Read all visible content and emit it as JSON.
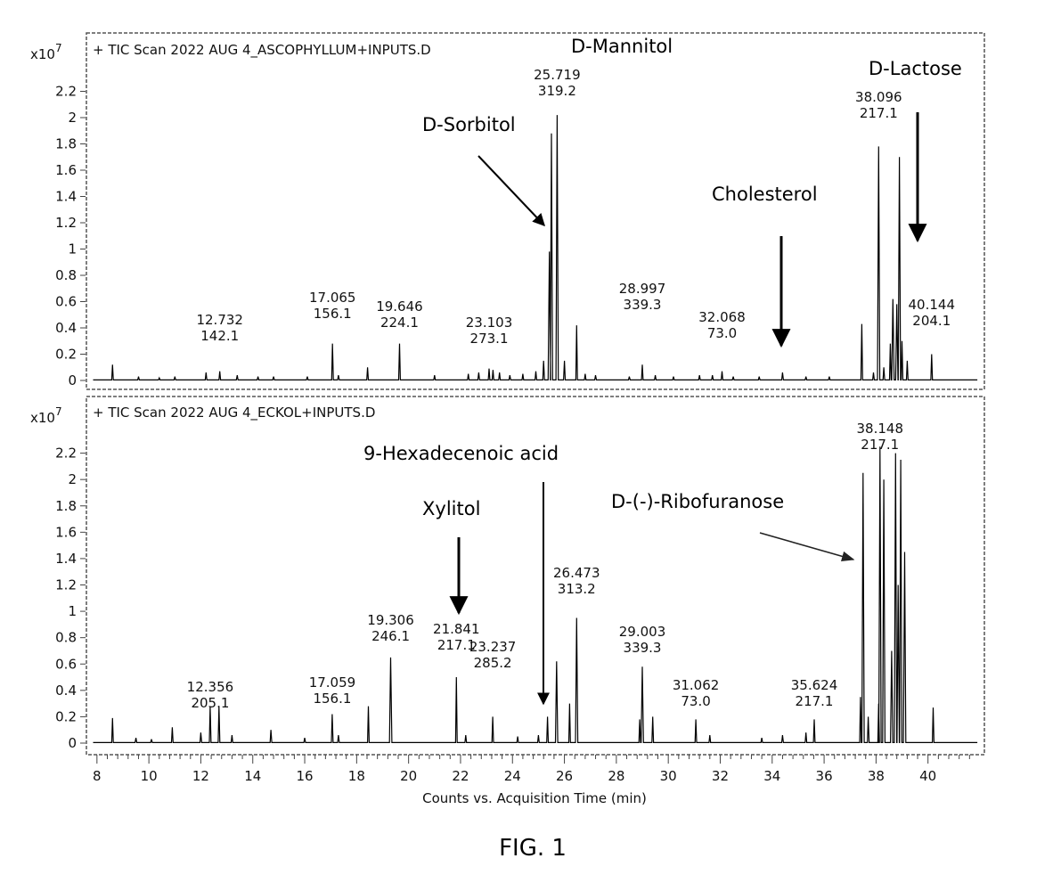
{
  "figure_caption": "FIG. 1",
  "chart_data": [
    {
      "type": "line",
      "header": "+ TIC Scan 2022 AUG 4_ASCOPHYLLUM+INPUTS.D",
      "y_scale_label": "x10",
      "y_scale_exponent": "7",
      "ylim": [
        0,
        2.4
      ],
      "yticks": [
        {
          "v": 0,
          "t": "0"
        },
        {
          "v": 0.2,
          "t": "0.2"
        },
        {
          "v": 0.4,
          "t": "0.4"
        },
        {
          "v": 0.6,
          "t": "0.6"
        },
        {
          "v": 0.8,
          "t": "0.8"
        },
        {
          "v": 1,
          "t": "1"
        },
        {
          "v": 1.2,
          "t": "1.2"
        },
        {
          "v": 1.4,
          "t": "1.4"
        },
        {
          "v": 1.6,
          "t": "1.6"
        },
        {
          "v": 1.8,
          "t": "1.8"
        },
        {
          "v": 2,
          "t": "2"
        },
        {
          "v": 2.2,
          "t": "2.2"
        }
      ],
      "xlim": [
        7.8,
        42.0
      ],
      "peaks": [
        [
          8.6,
          0.12
        ],
        [
          9.6,
          0.03
        ],
        [
          10.4,
          0.02
        ],
        [
          11.0,
          0.03
        ],
        [
          12.2,
          0.06
        ],
        [
          12.73,
          0.07
        ],
        [
          13.4,
          0.04
        ],
        [
          14.2,
          0.03
        ],
        [
          14.8,
          0.03
        ],
        [
          16.1,
          0.03
        ],
        [
          17.07,
          0.28
        ],
        [
          17.3,
          0.04
        ],
        [
          18.42,
          0.1
        ],
        [
          19.65,
          0.28
        ],
        [
          21.0,
          0.04
        ],
        [
          22.3,
          0.05
        ],
        [
          22.7,
          0.06
        ],
        [
          23.1,
          0.09
        ],
        [
          23.25,
          0.08
        ],
        [
          23.5,
          0.06
        ],
        [
          23.9,
          0.04
        ],
        [
          24.4,
          0.05
        ],
        [
          24.9,
          0.07
        ],
        [
          25.2,
          0.15
        ],
        [
          25.42,
          0.98
        ],
        [
          25.5,
          1.88
        ],
        [
          25.72,
          2.02
        ],
        [
          26.0,
          0.15
        ],
        [
          26.47,
          0.42
        ],
        [
          26.8,
          0.05
        ],
        [
          27.2,
          0.04
        ],
        [
          28.5,
          0.03
        ],
        [
          29.0,
          0.12
        ],
        [
          29.5,
          0.04
        ],
        [
          30.2,
          0.03
        ],
        [
          31.2,
          0.04
        ],
        [
          31.7,
          0.04
        ],
        [
          32.07,
          0.07
        ],
        [
          32.5,
          0.03
        ],
        [
          33.5,
          0.03
        ],
        [
          34.4,
          0.06
        ],
        [
          35.3,
          0.03
        ],
        [
          36.2,
          0.03
        ],
        [
          37.45,
          0.43
        ],
        [
          37.9,
          0.06
        ],
        [
          38.1,
          1.78
        ],
        [
          38.3,
          0.1
        ],
        [
          38.55,
          0.28
        ],
        [
          38.65,
          0.62
        ],
        [
          38.8,
          0.58
        ],
        [
          38.9,
          1.7
        ],
        [
          39.0,
          0.3
        ],
        [
          39.2,
          0.15
        ],
        [
          40.14,
          0.2
        ]
      ],
      "peak_labels": [
        {
          "rt": "12.732",
          "mz": "142.1",
          "x": 12.73
        },
        {
          "rt": "17.065",
          "mz": "156.1",
          "x": 17.07
        },
        {
          "rt": "19.646",
          "mz": "224.1",
          "x": 19.65
        },
        {
          "rt": "23.103",
          "mz": "273.1",
          "x": 23.1
        },
        {
          "rt": "25.719",
          "mz": "319.2",
          "x": 25.72
        },
        {
          "rt": "28.997",
          "mz": "339.3",
          "x": 29.0
        },
        {
          "rt": "32.068",
          "mz": "73.0",
          "x": 32.07
        },
        {
          "rt": "38.096",
          "mz": "217.1",
          "x": 38.1
        },
        {
          "rt": "40.144",
          "mz": "204.1",
          "x": 40.14
        }
      ],
      "annotations": [
        {
          "text": "D-Mannitol"
        },
        {
          "text": "D-Sorbitol"
        },
        {
          "text": "Cholesterol"
        },
        {
          "text": "D-Lactose"
        }
      ]
    },
    {
      "type": "line",
      "header": "+ TIC Scan 2022 AUG 4_ECKOL+INPUTS.D",
      "y_scale_label": "x10",
      "y_scale_exponent": "7",
      "ylim": [
        0,
        2.4
      ],
      "yticks": [
        {
          "v": 0,
          "t": "0"
        },
        {
          "v": 0.2,
          "t": "0.2"
        },
        {
          "v": 0.4,
          "t": "0.4"
        },
        {
          "v": 0.6,
          "t": "0.6"
        },
        {
          "v": 0.8,
          "t": "0.8"
        },
        {
          "v": 1,
          "t": "1"
        },
        {
          "v": 1.2,
          "t": "1.2"
        },
        {
          "v": 1.4,
          "t": "1.4"
        },
        {
          "v": 1.6,
          "t": "1.6"
        },
        {
          "v": 1.8,
          "t": "1.8"
        },
        {
          "v": 2,
          "t": "2"
        },
        {
          "v": 2.2,
          "t": "2.2"
        }
      ],
      "xlim": [
        7.8,
        42.0
      ],
      "xticks": [
        8,
        10,
        12,
        14,
        16,
        18,
        20,
        22,
        24,
        26,
        28,
        30,
        32,
        34,
        36,
        38,
        40
      ],
      "xlabel": "Counts vs. Acquisition Time (min)",
      "peaks": [
        [
          8.6,
          0.19
        ],
        [
          9.5,
          0.04
        ],
        [
          10.1,
          0.03
        ],
        [
          10.9,
          0.12
        ],
        [
          12.0,
          0.08
        ],
        [
          12.36,
          0.28
        ],
        [
          12.7,
          0.28
        ],
        [
          13.2,
          0.06
        ],
        [
          14.7,
          0.1
        ],
        [
          16.0,
          0.04
        ],
        [
          17.06,
          0.22
        ],
        [
          17.3,
          0.06
        ],
        [
          18.45,
          0.28
        ],
        [
          19.31,
          0.65
        ],
        [
          21.84,
          0.5
        ],
        [
          22.2,
          0.06
        ],
        [
          23.24,
          0.2
        ],
        [
          24.2,
          0.05
        ],
        [
          25.0,
          0.06
        ],
        [
          25.35,
          0.2
        ],
        [
          25.7,
          0.62
        ],
        [
          26.2,
          0.3
        ],
        [
          26.47,
          0.95
        ],
        [
          28.9,
          0.18
        ],
        [
          29.0,
          0.58
        ],
        [
          29.4,
          0.2
        ],
        [
          31.06,
          0.18
        ],
        [
          31.6,
          0.06
        ],
        [
          33.6,
          0.04
        ],
        [
          34.4,
          0.06
        ],
        [
          35.3,
          0.08
        ],
        [
          35.62,
          0.18
        ],
        [
          37.4,
          0.35
        ],
        [
          37.5,
          2.05
        ],
        [
          37.7,
          0.2
        ],
        [
          38.1,
          0.3
        ],
        [
          38.15,
          2.25
        ],
        [
          38.3,
          2.0
        ],
        [
          38.6,
          0.7
        ],
        [
          38.75,
          2.2
        ],
        [
          38.85,
          1.2
        ],
        [
          38.95,
          2.15
        ],
        [
          39.1,
          1.45
        ],
        [
          40.2,
          0.27
        ]
      ],
      "peak_labels": [
        {
          "rt": "12.356",
          "mz": "205.1",
          "x": 12.36
        },
        {
          "rt": "17.059",
          "mz": "156.1",
          "x": 17.06
        },
        {
          "rt": "19.306",
          "mz": "246.1",
          "x": 19.31
        },
        {
          "rt": "21.841",
          "mz": "217.1",
          "x": 21.84
        },
        {
          "rt": "23.237",
          "mz": "285.2",
          "x": 23.24
        },
        {
          "rt": "26.473",
          "mz": "313.2",
          "x": 26.47
        },
        {
          "rt": "29.003",
          "mz": "339.3",
          "x": 29.0
        },
        {
          "rt": "31.062",
          "mz": "73.0",
          "x": 31.06
        },
        {
          "rt": "35.624",
          "mz": "217.1",
          "x": 35.62
        },
        {
          "rt": "38.148",
          "mz": "217.1",
          "x": 38.15
        }
      ],
      "annotations": [
        {
          "text": "9-Hexadecenoic acid"
        },
        {
          "text": "Xylitol"
        },
        {
          "text": "D-(-)-Ribofuranose"
        }
      ]
    }
  ]
}
